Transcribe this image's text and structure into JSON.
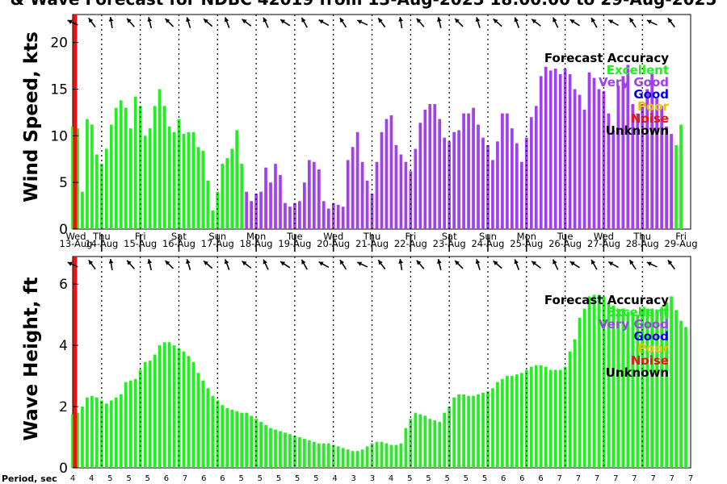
{
  "title": "& Wave Forecast for NDBC 42019 from 13-Aug-2025 18:00:00 to 29-Aug-2025",
  "legend": {
    "title": "Forecast Accuracy",
    "items": [
      {
        "label": "Excellent",
        "color": "#22ee22"
      },
      {
        "label": "Very Good",
        "color": "#a040f0"
      },
      {
        "label": "Good",
        "color": "#0000dd"
      },
      {
        "label": "Poor",
        "color": "#f0c000"
      },
      {
        "label": "Noise",
        "color": "#ee1111"
      },
      {
        "label": "Unknown",
        "color": "#000000"
      }
    ]
  },
  "colors": {
    "excellent": "#22ee22",
    "very_good": "#a040f0",
    "noise_line": "#ee1111"
  },
  "days": [
    {
      "dow": "Wed",
      "date": "13-Aug"
    },
    {
      "dow": "Thu",
      "date": "14-Aug"
    },
    {
      "dow": "Fri",
      "date": "15-Aug"
    },
    {
      "dow": "Sat",
      "date": "16-Aug"
    },
    {
      "dow": "Sun",
      "date": "17-Aug"
    },
    {
      "dow": "Mon",
      "date": "18-Aug"
    },
    {
      "dow": "Tue",
      "date": "19-Aug"
    },
    {
      "dow": "Wed",
      "date": "20-Aug"
    },
    {
      "dow": "Thu",
      "date": "21-Aug"
    },
    {
      "dow": "Fri",
      "date": "22-Aug"
    },
    {
      "dow": "Sat",
      "date": "23-Aug"
    },
    {
      "dow": "Sun",
      "date": "24-Aug"
    },
    {
      "dow": "Mon",
      "date": "25-Aug"
    },
    {
      "dow": "Tue",
      "date": "26-Aug"
    },
    {
      "dow": "Wed",
      "date": "27-Aug"
    },
    {
      "dow": "Thu",
      "date": "28-Aug"
    },
    {
      "dow": "Fri",
      "date": "29-Aug"
    }
  ],
  "period_label": "Period, sec",
  "periods": [
    "4",
    "4",
    "5",
    "5",
    "5",
    "6",
    "7",
    "6",
    "6",
    "5",
    "5",
    "5",
    "5",
    "5",
    "4",
    "3",
    "3",
    "4",
    "5",
    "5",
    "5",
    "5",
    "5",
    "6",
    "6",
    "6",
    "7",
    "7",
    "7",
    "7",
    "7",
    "7",
    "7",
    "7"
  ],
  "chart_data": [
    {
      "type": "bar",
      "name": "wind",
      "ylabel": "Wind Speed, kts",
      "ylim": [
        0,
        23
      ],
      "yticks": [
        0,
        5,
        10,
        15,
        20
      ],
      "x_start_day": 0.25,
      "step_hours": 3,
      "values": [
        11.0,
        10.8,
        4.0,
        11.8,
        11.2,
        8.0,
        7.0,
        8.6,
        11.2,
        13.0,
        13.8,
        13.0,
        10.8,
        14.2,
        13.2,
        10.0,
        10.8,
        13.2,
        15.0,
        13.2,
        11.0,
        10.4,
        11.8,
        10.2,
        10.4,
        10.4,
        8.8,
        8.4,
        5.2,
        2.0,
        4.0,
        7.0,
        7.6,
        8.6,
        10.6,
        7.0,
        4.0,
        3.0,
        3.8,
        4.0,
        6.6,
        5.0,
        7.0,
        5.8,
        2.8,
        2.4,
        2.8,
        3.0,
        5.0,
        7.4,
        7.2,
        6.4,
        3.0,
        2.2,
        2.8,
        2.6,
        2.4,
        7.4,
        8.8,
        10.4,
        7.2,
        5.2,
        3.8,
        7.2,
        10.4,
        11.8,
        12.2,
        9.0,
        8.0,
        7.2,
        6.2,
        8.6,
        11.4,
        12.8,
        13.4,
        13.4,
        11.8,
        9.8,
        9.4,
        10.4,
        10.6,
        12.4,
        12.4,
        13.0,
        11.2,
        9.8,
        9.0,
        7.4,
        9.4,
        12.4,
        12.4,
        10.8,
        9.2,
        7.2,
        9.8,
        12.0,
        13.2,
        16.4,
        17.4,
        17.0,
        17.2,
        16.6,
        17.2,
        16.6,
        15.0,
        14.4,
        12.8,
        16.8,
        16.2,
        15.0,
        14.8,
        12.4,
        10.6,
        15.4,
        16.4,
        17.6,
        13.4,
        12.4,
        13.4,
        15.0,
        16.6,
        14.0,
        13.2,
        11.0,
        10.2,
        9.0,
        11.2
      ],
      "groups": [
        {
          "label": "Excellent",
          "from": 0,
          "to": 35
        },
        {
          "label": "Very Good",
          "from": 36,
          "to": 124
        }
      ]
    },
    {
      "type": "bar",
      "name": "wave",
      "ylabel": "Wave Height, ft",
      "ylim": [
        0,
        6.9
      ],
      "yticks": [
        0,
        2,
        4,
        6
      ],
      "x_start_day": 0.25,
      "step_hours": 3,
      "values": [
        1.75,
        1.8,
        2.0,
        2.3,
        2.35,
        2.3,
        2.2,
        2.1,
        2.2,
        2.3,
        2.4,
        2.8,
        2.85,
        2.9,
        3.2,
        3.45,
        3.5,
        3.7,
        4.0,
        4.1,
        4.1,
        4.0,
        3.9,
        3.8,
        3.65,
        3.45,
        3.1,
        2.85,
        2.6,
        2.35,
        2.2,
        2.05,
        1.95,
        1.9,
        1.85,
        1.8,
        1.8,
        1.7,
        1.6,
        1.5,
        1.4,
        1.3,
        1.25,
        1.2,
        1.15,
        1.1,
        1.05,
        1.0,
        0.95,
        0.9,
        0.85,
        0.8,
        0.8,
        0.8,
        0.75,
        0.7,
        0.65,
        0.6,
        0.55,
        0.55,
        0.6,
        0.7,
        0.8,
        0.85,
        0.85,
        0.8,
        0.75,
        0.75,
        0.8,
        1.3,
        1.6,
        1.8,
        1.75,
        1.7,
        1.6,
        1.55,
        1.5,
        1.8,
        2.0,
        2.3,
        2.4,
        2.4,
        2.35,
        2.35,
        2.4,
        2.45,
        2.5,
        2.6,
        2.8,
        2.9,
        3.0,
        3.0,
        3.05,
        3.1,
        3.2,
        3.3,
        3.35,
        3.35,
        3.3,
        3.2,
        3.2,
        3.2,
        3.3,
        3.8,
        4.2,
        4.9,
        5.2,
        5.6,
        5.65,
        5.65,
        5.6,
        5.4,
        5.3,
        5.2,
        5.2,
        5.1,
        5.05,
        5.0,
        5.2,
        5.2,
        5.2,
        5.15,
        5.25,
        5.4,
        5.6,
        5.15,
        4.8,
        4.6
      ],
      "groups": [
        {
          "label": "Excellent",
          "from": 0,
          "to": 124
        }
      ]
    }
  ]
}
